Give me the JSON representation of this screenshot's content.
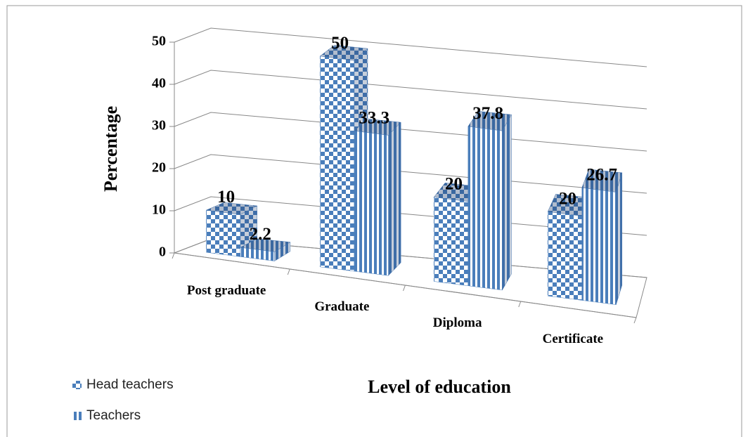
{
  "chart_data": {
    "type": "bar3d",
    "categories": [
      "Post graduate",
      "Graduate",
      "Diploma",
      "Certificate"
    ],
    "series": [
      {
        "name": "Head teachers",
        "color": "#4a7ebb",
        "pattern": "checker",
        "values": [
          10,
          50,
          20,
          20
        ]
      },
      {
        "name": "Teachers",
        "color": "#4a7ebb",
        "pattern": "stripes",
        "values": [
          2.2,
          33.3,
          37.8,
          26.7
        ]
      }
    ],
    "ylim": [
      0,
      50
    ],
    "yticks": [
      0,
      10,
      20,
      30,
      40,
      50
    ],
    "y_label": "Percentage",
    "x_label": "Level of education",
    "grid": true,
    "legend": "bottom-left"
  }
}
